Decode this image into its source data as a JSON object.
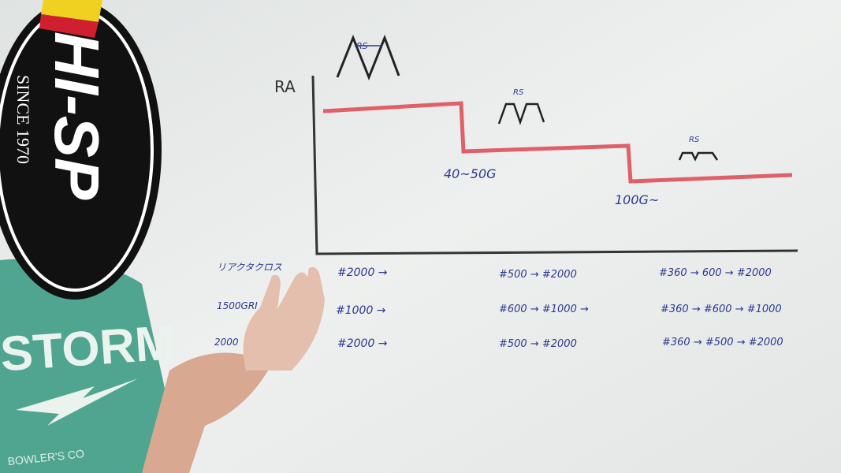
{
  "logo": {
    "brand": "HI-SP",
    "tagline": "SINCE 1970"
  },
  "shirt": {
    "brand": "STORM",
    "subtext": "BOWLER'S CO"
  },
  "diagram": {
    "y_axis_label": "RA",
    "surface_label": "RS",
    "step_labels": [
      "40~50G",
      "100G~"
    ],
    "line_color": "#e0606a",
    "ink_color": "#2b3a8f",
    "rows": [
      {
        "label": "リアクタクロス",
        "cells": [
          "#2000 →",
          "#500 → #2000",
          "#360 → 600 → #2000"
        ]
      },
      {
        "label": "1500GRI",
        "cells": [
          "#1000 →",
          "#600 → #1000 →",
          "#360 → #600 → #1000"
        ]
      },
      {
        "label": "2000",
        "cells": [
          "#2000 →",
          "#500 → #2000",
          "#360 → #500 → #2000"
        ]
      }
    ]
  }
}
